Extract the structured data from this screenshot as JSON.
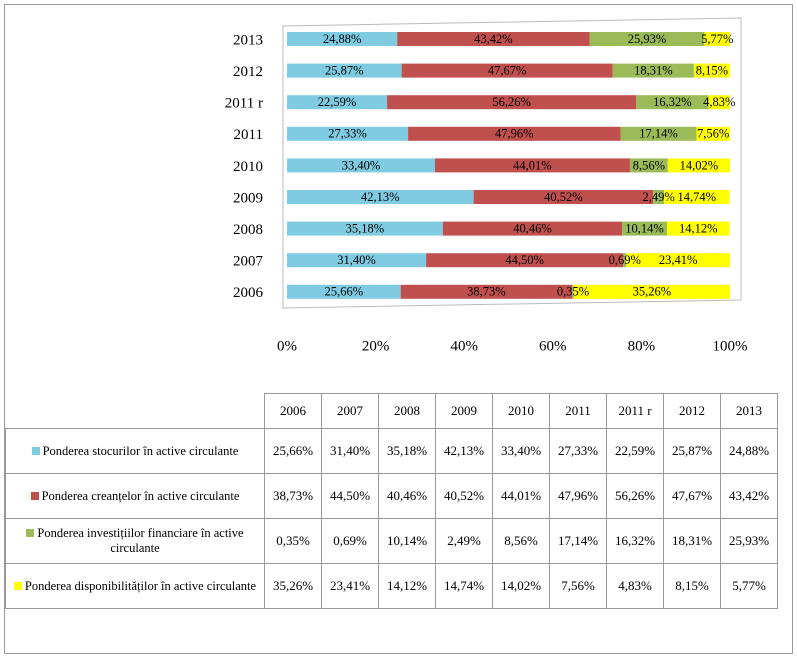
{
  "chart_data": {
    "type": "stacked-bar-horizontal",
    "categories": [
      "2006",
      "2007",
      "2008",
      "2009",
      "2010",
      "2011",
      "2011 r",
      "2012",
      "2013"
    ],
    "series": [
      {
        "name": "Ponderea stocurilor în active circulante",
        "color": "#7fcbe2",
        "values": [
          25.66,
          31.4,
          35.18,
          42.13,
          33.4,
          27.33,
          22.59,
          25.87,
          24.88
        ],
        "value_labels": [
          "25,66%",
          "31,40%",
          "35,18%",
          "42,13%",
          "33,40%",
          "27,33%",
          "22,59%",
          "25,87%",
          "24,88%"
        ]
      },
      {
        "name": "Ponderea creanțelor în active circulante",
        "color": "#c0504d",
        "values": [
          38.73,
          44.5,
          40.46,
          40.52,
          44.01,
          47.96,
          56.26,
          47.67,
          43.42
        ],
        "value_labels": [
          "38,73%",
          "44,50%",
          "40,46%",
          "40,52%",
          "44,01%",
          "47,96%",
          "56,26%",
          "47,67%",
          "43,42%"
        ]
      },
      {
        "name": "Ponderea investițiilor financiare în active circulante",
        "color": "#9bbb59",
        "values": [
          0.35,
          0.69,
          10.14,
          2.49,
          8.56,
          17.14,
          16.32,
          18.31,
          25.93
        ],
        "value_labels": [
          "0,35%",
          "0,69%",
          "10,14%",
          "2,49%",
          "8,56%",
          "17,14%",
          "16,32%",
          "18,31%",
          "25,93%"
        ]
      },
      {
        "name": "Ponderea disponibilităților în active circulante",
        "color": "#ffff00",
        "values": [
          35.26,
          23.41,
          14.12,
          14.74,
          14.02,
          7.56,
          4.83,
          8.15,
          5.77
        ],
        "value_labels": [
          "35,26%",
          "23,41%",
          "14,12%",
          "14,74%",
          "14,02%",
          "7,56%",
          "4,83%",
          "8,15%",
          "5,77%"
        ]
      }
    ],
    "xlim": [
      0,
      100
    ],
    "xticks": [
      {
        "value": 0,
        "label": "0%"
      },
      {
        "value": 20,
        "label": "20%"
      },
      {
        "value": 40,
        "label": "40%"
      },
      {
        "value": 60,
        "label": "60%"
      },
      {
        "value": 80,
        "label": "80%"
      },
      {
        "value": 100,
        "label": "100%"
      }
    ]
  }
}
